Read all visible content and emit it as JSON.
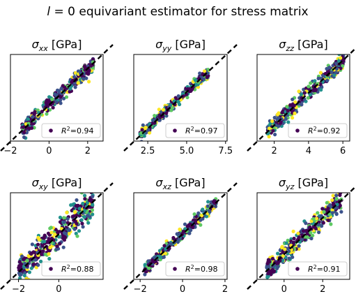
{
  "chart_data": {
    "type": "scatter",
    "title": "l = 0 equivariant estimator for stress matrix",
    "title_parts": {
      "symbol": "l",
      "rest": " = 0 equivariant estimator for stress matrix"
    },
    "colormap": [
      "#440154",
      "#3b528b",
      "#21918c",
      "#5ec962",
      "#fde725"
    ],
    "reference_line": "y = x (black dashed)",
    "legend_placement": "lower-right",
    "panels": [
      {
        "id": "xx",
        "title_symbol": "σ",
        "title_sub": "xx",
        "title_unit": " [GPa]",
        "legend_label": "R²=0.94",
        "legend_r2": "R",
        "legend_rest": "=0.94",
        "r2": 0.94,
        "xlim": [
          -2.0,
          2.8
        ],
        "xticks": [
          -2,
          0,
          2
        ],
        "xticklabels": [
          "−2",
          "0",
          "2"
        ],
        "cloud": {
          "x_range": [
            -1.4,
            2.3
          ],
          "spread": 0.22,
          "n": 360
        }
      },
      {
        "id": "yy",
        "title_symbol": "σ",
        "title_sub": "yy",
        "title_unit": " [GPa]",
        "legend_label": "R²=0.97",
        "legend_r2": "R",
        "legend_rest": "=0.97",
        "r2": 0.97,
        "xlim": [
          1.6,
          7.6
        ],
        "xticks": [
          2.5,
          5.0,
          7.5
        ],
        "xticklabels": [
          "2.5",
          "5.0",
          "7.5"
        ],
        "cloud": {
          "x_range": [
            2.0,
            6.4
          ],
          "spread": 0.18,
          "n": 360
        }
      },
      {
        "id": "zz",
        "title_symbol": "σ",
        "title_sub": "zz",
        "title_unit": " [GPa]",
        "legend_label": "R²=0.92",
        "legend_r2": "R",
        "legend_rest": "=0.92",
        "r2": 0.92,
        "xlim": [
          1.0,
          6.4
        ],
        "xticks": [
          2,
          4,
          6
        ],
        "xticklabels": [
          "2",
          "4",
          "6"
        ],
        "cloud": {
          "x_range": [
            1.6,
            6.1
          ],
          "spread": 0.25,
          "n": 360
        }
      },
      {
        "id": "xy",
        "title_symbol": "σ",
        "title_sub": "xy",
        "title_unit": " [GPa]",
        "legend_label": "R²=0.88",
        "legend_r2": "R",
        "legend_rest": "=0.88",
        "r2": 0.88,
        "xlim": [
          -2.4,
          2.2
        ],
        "xticks": [
          -2,
          0
        ],
        "xticklabels": [
          "−2",
          "0"
        ],
        "cloud": {
          "x_range": [
            -2.0,
            1.7
          ],
          "spread": 0.38,
          "n": 380
        }
      },
      {
        "id": "xz",
        "title_symbol": "σ",
        "title_sub": "xz",
        "title_unit": " [GPa]",
        "legend_label": "R²=0.98",
        "legend_r2": "R",
        "legend_rest": "=0.98",
        "r2": 0.98,
        "xlim": [
          -2.3,
          2.1
        ],
        "xticks": [
          -2,
          0,
          2
        ],
        "xticklabels": [
          "−2",
          "0",
          "2"
        ],
        "cloud": {
          "x_range": [
            -1.8,
            1.6
          ],
          "spread": 0.14,
          "n": 360
        }
      },
      {
        "id": "yz",
        "title_symbol": "σ",
        "title_sub": "yz",
        "title_unit": " [GPa]",
        "legend_label": "R²=0.91",
        "legend_r2": "R",
        "legend_rest": "=0.91",
        "r2": 0.91,
        "xlim": [
          -1.4,
          3.4
        ],
        "xticks": [
          0,
          2
        ],
        "xticklabels": [
          "0",
          "2"
        ],
        "cloud": {
          "x_range": [
            -0.9,
            3.0
          ],
          "spread": 0.28,
          "n": 380
        }
      }
    ]
  }
}
